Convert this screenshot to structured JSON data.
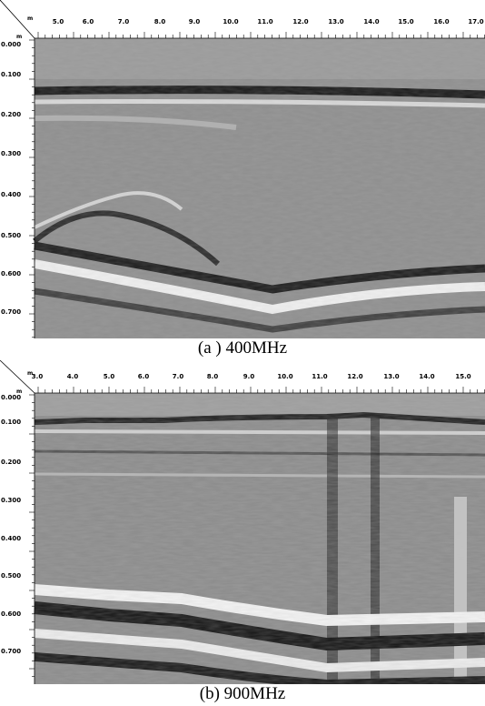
{
  "panels": [
    {
      "id": "a",
      "caption": "(a ) 400MHz",
      "x_unit": "m",
      "y_unit": "m",
      "x_ticks": [
        "5.0",
        "6.0",
        "7.0",
        "8.0",
        "9.0",
        "10.0",
        "11.0",
        "12.0",
        "13.0",
        "14.0",
        "15.0",
        "16.0",
        "17.0"
      ],
      "y_ticks": [
        "0.000",
        "0.100",
        "0.200",
        "0.300",
        "0.400",
        "0.500",
        "0.600",
        "0.700"
      ]
    },
    {
      "id": "b",
      "caption": "(b)  900MHz",
      "x_unit": "m",
      "y_unit": "m",
      "x_ticks": [
        "3.0",
        "4.0",
        "5.0",
        "6.0",
        "7.0",
        "8.0",
        "9.0",
        "10.0",
        "11.0",
        "12.0",
        "13.0",
        "14.0",
        "15.0"
      ],
      "y_ticks": [
        "0.000",
        "0.100",
        "0.200",
        "0.300",
        "0.400",
        "0.500",
        "0.600",
        "0.700"
      ]
    }
  ]
}
